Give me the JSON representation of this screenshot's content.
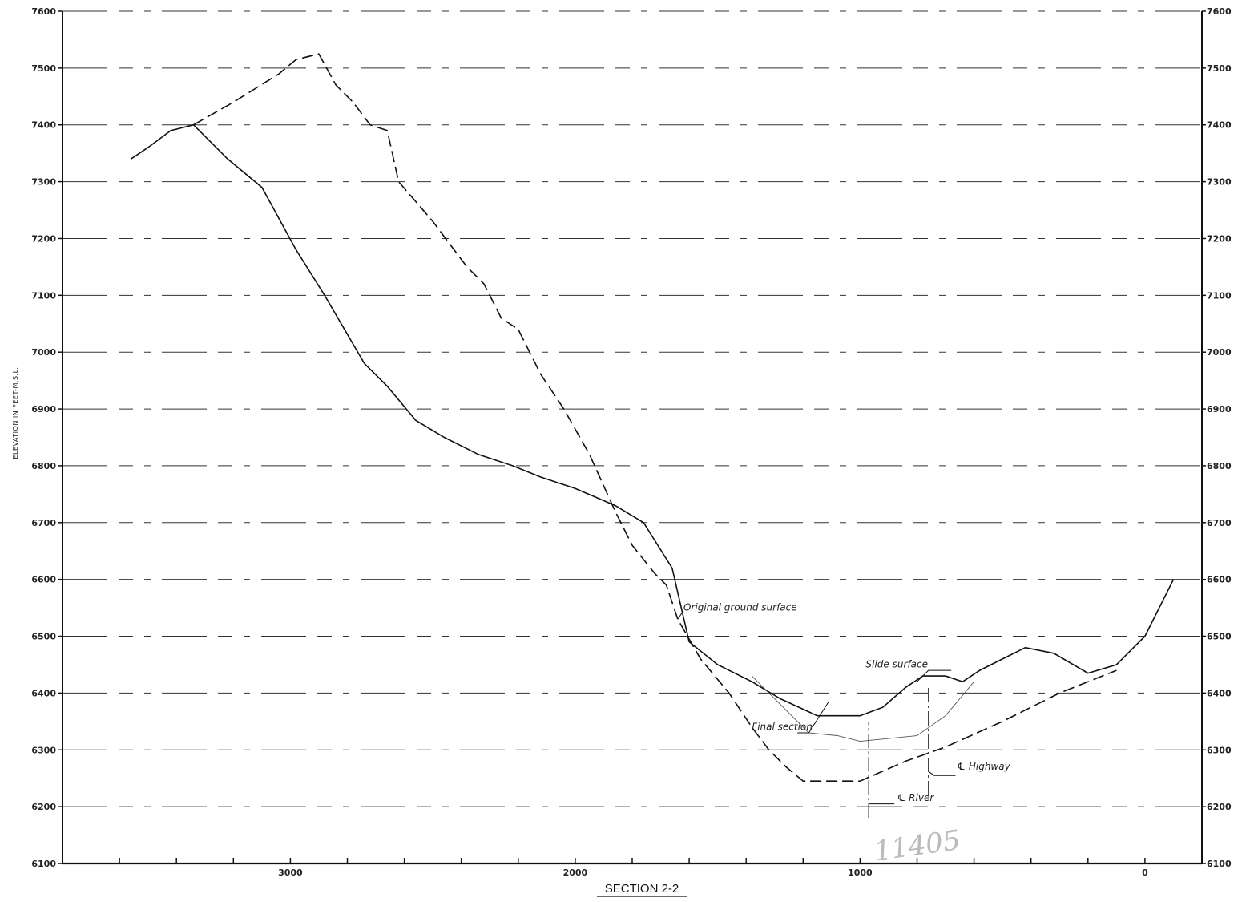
{
  "chart_data": {
    "type": "line",
    "title": "SECTION 2-2",
    "ylabel": "ELEVATION IN FEET-M.S.L.",
    "xlabel": "",
    "xlim": [
      3800,
      -200
    ],
    "ylim": [
      6100,
      7600
    ],
    "x_ticks": [
      3000,
      2000,
      1000,
      0
    ],
    "x_tick_labels": [
      "3000",
      "2000",
      "1000",
      "0"
    ],
    "y_ticks": [
      6100,
      6200,
      6300,
      6400,
      6500,
      6600,
      6700,
      6800,
      6900,
      7000,
      7100,
      7200,
      7300,
      7400,
      7500,
      7600
    ],
    "y_tick_labels_left": [
      "6100",
      "6200",
      "6300",
      "6400",
      "6500",
      "6600",
      "6700",
      "6800",
      "6900",
      "7000",
      "7100",
      "7200",
      "7300",
      "7400",
      "7500",
      "7600"
    ],
    "y_tick_labels_right": [
      "6100",
      "6200",
      "6300",
      "6400",
      "6500",
      "6600",
      "6700",
      "6800",
      "6900",
      "7000",
      "7100",
      "7200",
      "7300",
      "7400",
      "7500",
      "7600"
    ],
    "grid": "horizontal dashed",
    "series": [
      {
        "name": "Original ground surface",
        "style": "dashed",
        "points": [
          [
            3340,
            7400
          ],
          [
            3200,
            7440
          ],
          [
            3040,
            7490
          ],
          [
            2980,
            7515
          ],
          [
            2900,
            7525
          ],
          [
            2840,
            7470
          ],
          [
            2780,
            7440
          ],
          [
            2720,
            7400
          ],
          [
            2660,
            7390
          ],
          [
            2620,
            7300
          ],
          [
            2500,
            7230
          ],
          [
            2440,
            7190
          ],
          [
            2380,
            7150
          ],
          [
            2320,
            7120
          ],
          [
            2260,
            7060
          ],
          [
            2200,
            7040
          ],
          [
            2120,
            6960
          ],
          [
            2040,
            6900
          ],
          [
            1950,
            6820
          ],
          [
            1860,
            6720
          ],
          [
            1800,
            6660
          ],
          [
            1720,
            6610
          ],
          [
            1680,
            6590
          ],
          [
            1640,
            6530
          ],
          [
            1560,
            6460
          ],
          [
            1460,
            6400
          ],
          [
            1380,
            6340
          ],
          [
            1320,
            6300
          ],
          [
            1260,
            6270
          ],
          [
            1200,
            6245
          ],
          [
            1100,
            6245
          ],
          [
            1000,
            6245
          ],
          [
            840,
            6280
          ],
          [
            700,
            6305
          ],
          [
            500,
            6350
          ],
          [
            300,
            6400
          ],
          [
            100,
            6440
          ]
        ]
      },
      {
        "name": "Slide surface",
        "style": "solid",
        "points": [
          [
            3560,
            7340
          ],
          [
            3500,
            7360
          ],
          [
            3420,
            7390
          ],
          [
            3340,
            7400
          ],
          [
            3220,
            7340
          ],
          [
            3100,
            7290
          ],
          [
            2980,
            7180
          ],
          [
            2880,
            7100
          ],
          [
            2740,
            6980
          ],
          [
            2660,
            6940
          ],
          [
            2560,
            6880
          ],
          [
            2460,
            6850
          ],
          [
            2340,
            6820
          ],
          [
            2220,
            6800
          ],
          [
            2120,
            6780
          ],
          [
            2000,
            6760
          ],
          [
            1860,
            6730
          ],
          [
            1760,
            6700
          ],
          [
            1660,
            6620
          ],
          [
            1600,
            6490
          ],
          [
            1500,
            6450
          ],
          [
            1380,
            6420
          ],
          [
            1280,
            6390
          ],
          [
            1150,
            6360
          ],
          [
            1000,
            6360
          ],
          [
            920,
            6375
          ],
          [
            840,
            6410
          ],
          [
            780,
            6430
          ],
          [
            700,
            6430
          ],
          [
            640,
            6420
          ],
          [
            580,
            6440
          ],
          [
            500,
            6460
          ],
          [
            420,
            6480
          ],
          [
            320,
            6470
          ],
          [
            200,
            6435
          ],
          [
            100,
            6450
          ],
          [
            0,
            6500
          ],
          [
            -100,
            6600
          ]
        ]
      },
      {
        "name": "Final section",
        "style": "thin",
        "points": [
          [
            1380,
            6430
          ],
          [
            1280,
            6380
          ],
          [
            1180,
            6330
          ],
          [
            1080,
            6325
          ],
          [
            1000,
            6315
          ],
          [
            900,
            6320
          ],
          [
            800,
            6325
          ],
          [
            700,
            6360
          ],
          [
            600,
            6420
          ]
        ]
      }
    ],
    "reference_lines": [
      {
        "name": "River",
        "x": 970,
        "y_from": 6180,
        "y_to": 6350
      },
      {
        "name": "Highway",
        "x": 760,
        "y_from": 6220,
        "y_to": 6410
      }
    ],
    "annotations": [
      {
        "text": "Original ground surface",
        "x": 1620,
        "y": 6545
      },
      {
        "text": "Slide surface",
        "x": 980,
        "y": 6445
      },
      {
        "text": "Final section",
        "x": 1380,
        "y": 6335
      },
      {
        "text": "℄ Highway",
        "x": 660,
        "y": 6265
      },
      {
        "text": "℄ River",
        "x": 870,
        "y": 6210
      }
    ]
  },
  "handwritten_mark": "11405"
}
